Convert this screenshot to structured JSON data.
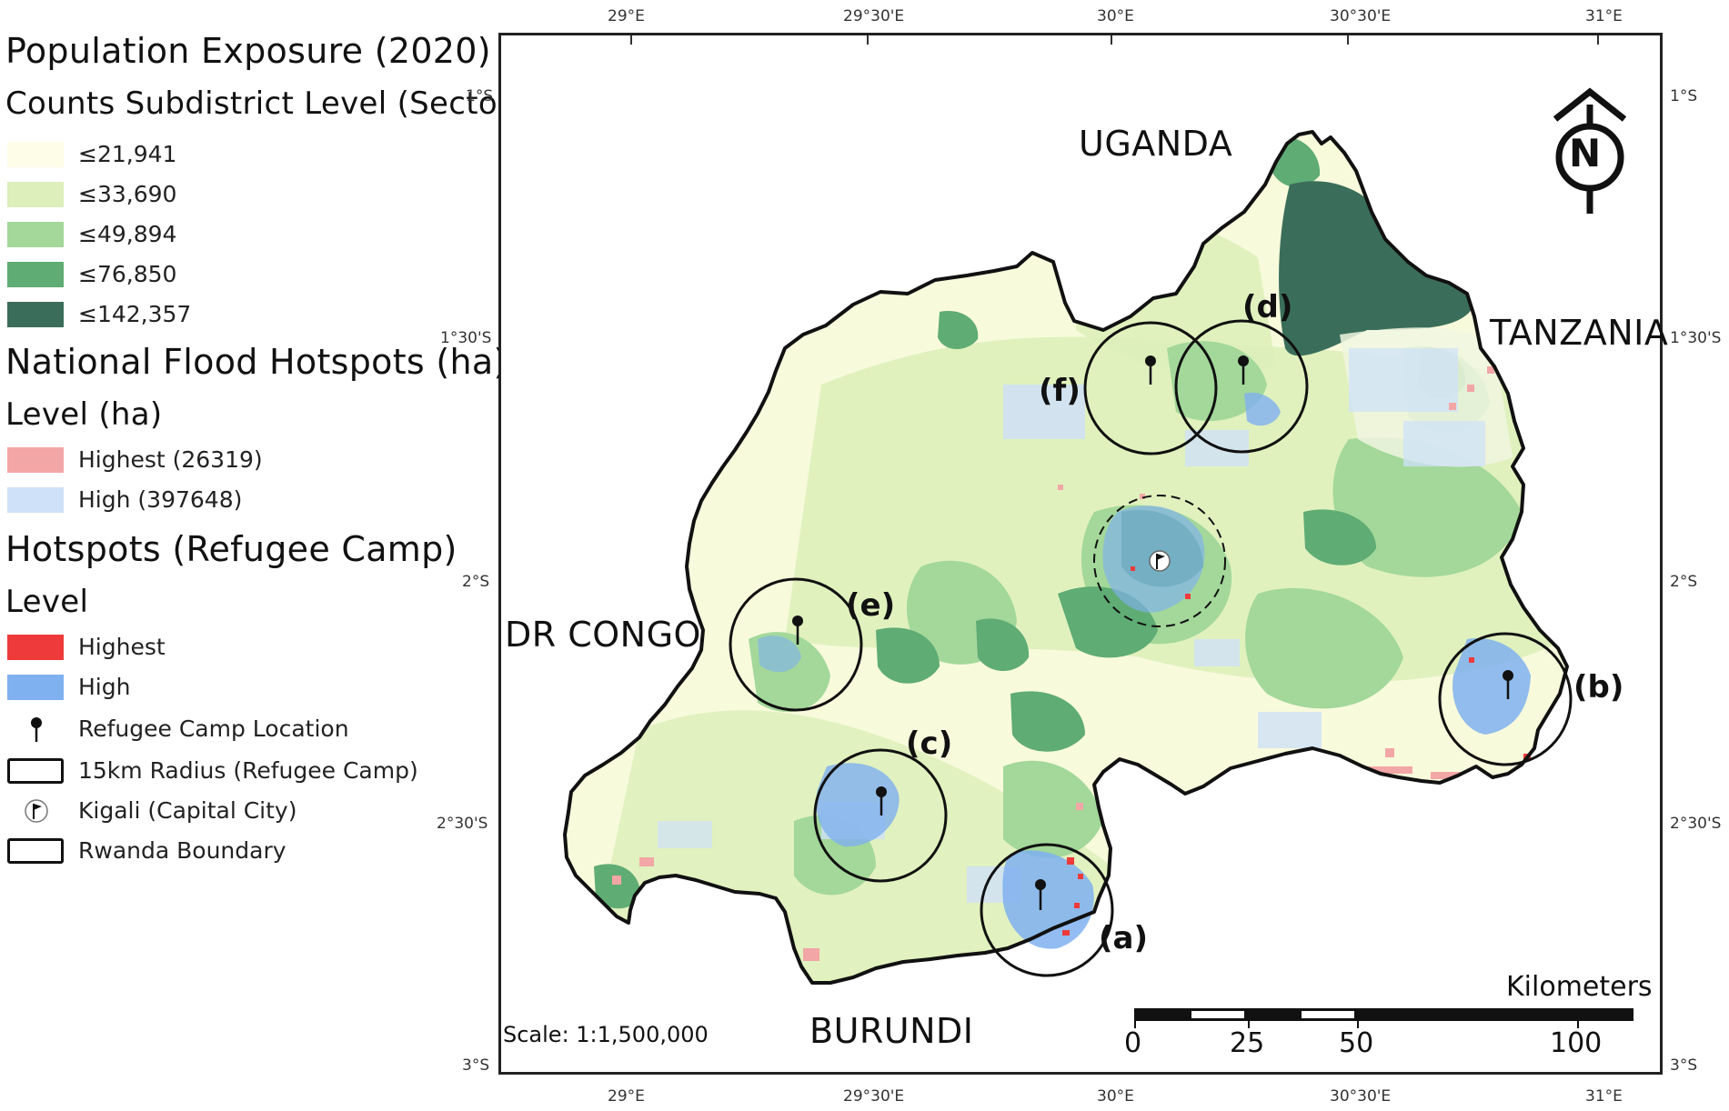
{
  "legend": {
    "title": "Population Exposure (2020)",
    "population": {
      "subtitle": "Counts Subdistrict Level (Sectors)",
      "classes": [
        {
          "label": "≤21,941",
          "color": "#fdfde8"
        },
        {
          "label": "≤33,690",
          "color": "#ddefba"
        },
        {
          "label": "≤49,894",
          "color": "#a3d89a"
        },
        {
          "label": "≤76,850",
          "color": "#5fac74"
        },
        {
          "label": "≤142,357",
          "color": "#3b6e5a"
        }
      ]
    },
    "national_flood": {
      "title": "National Flood Hotspots (ha)",
      "subtitle": "Level (ha)",
      "classes": [
        {
          "label": "Highest (26319)",
          "color": "#f3a6a6"
        },
        {
          "label": "High (397648)",
          "color": "#cfe1f8"
        }
      ]
    },
    "camp_hotspots": {
      "title": "Hotspots (Refugee Camp)",
      "subtitle": "Level",
      "classes": [
        {
          "label": "Highest",
          "color": "#ee3a3a"
        },
        {
          "label": "High",
          "color": "#7fb0f0"
        }
      ]
    },
    "symbols": [
      {
        "label": "Refugee Camp Location",
        "icon": "pin-icon"
      },
      {
        "label": "15km Radius (Refugee Camp)",
        "icon": "circle-outline"
      },
      {
        "label": "Kigali (Capital City)",
        "icon": "flag-icon"
      },
      {
        "label": "Rwanda Boundary",
        "icon": "boundary-outline"
      }
    ]
  },
  "map": {
    "countries": {
      "uganda": "UGANDA",
      "tanzania": "TANZANIA",
      "drc": "DR CONGO",
      "burundi": "BURUNDI"
    },
    "camps": [
      "(a)",
      "(b)",
      "(c)",
      "(d)",
      "(e)",
      "(f)"
    ],
    "north_arrow": "N",
    "graticule": {
      "lon_labels": [
        "29°E",
        "29°30'E",
        "30°E",
        "30°30'E",
        "31°E"
      ],
      "lat_labels": [
        "1°S",
        "1°30'S",
        "2°S",
        "2°30'S",
        "3°S"
      ]
    },
    "scale_text": "Scale: 1:1,500,000",
    "scalebar": {
      "title": "Kilometers",
      "labels": [
        "0",
        "25",
        "50",
        "100"
      ]
    }
  }
}
